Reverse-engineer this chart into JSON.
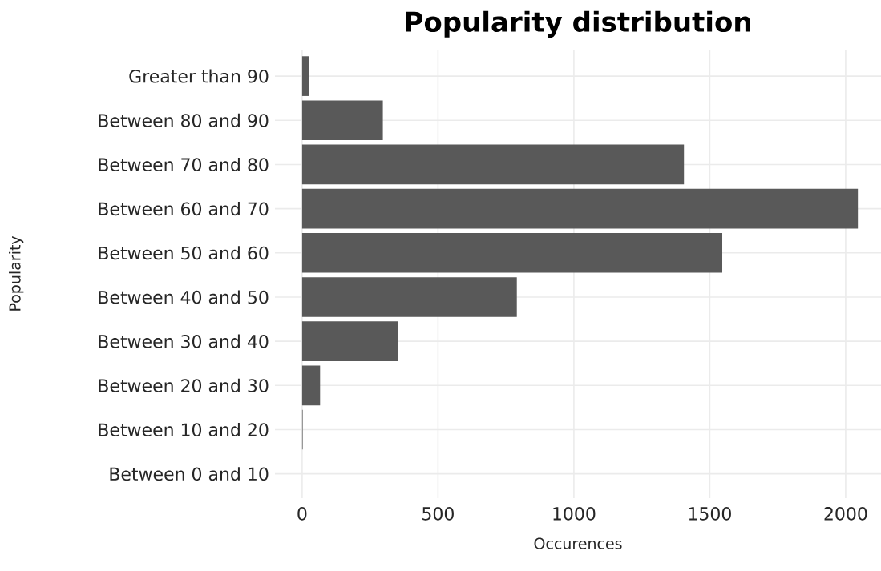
{
  "chart_data": {
    "type": "bar",
    "orientation": "horizontal",
    "title": "Popularity distribution",
    "xlabel": "Occurences",
    "ylabel": "Popularity",
    "categories": [
      "Greater than 90",
      "Between 80 and 90",
      "Between 70 and 80",
      "Between 60 and 70",
      "Between 50 and 60",
      "Between 40 and 50",
      "Between 30 and 40",
      "Between 20 and 30",
      "Between 10 and 20",
      "Between 0 and 10"
    ],
    "values": [
      24,
      297,
      1405,
      2045,
      1546,
      790,
      353,
      66,
      2,
      0
    ],
    "color": "#595959",
    "xlim": [
      -100,
      2130
    ],
    "xticks": [
      0,
      500,
      1000,
      1500,
      2000
    ],
    "grid": true
  }
}
